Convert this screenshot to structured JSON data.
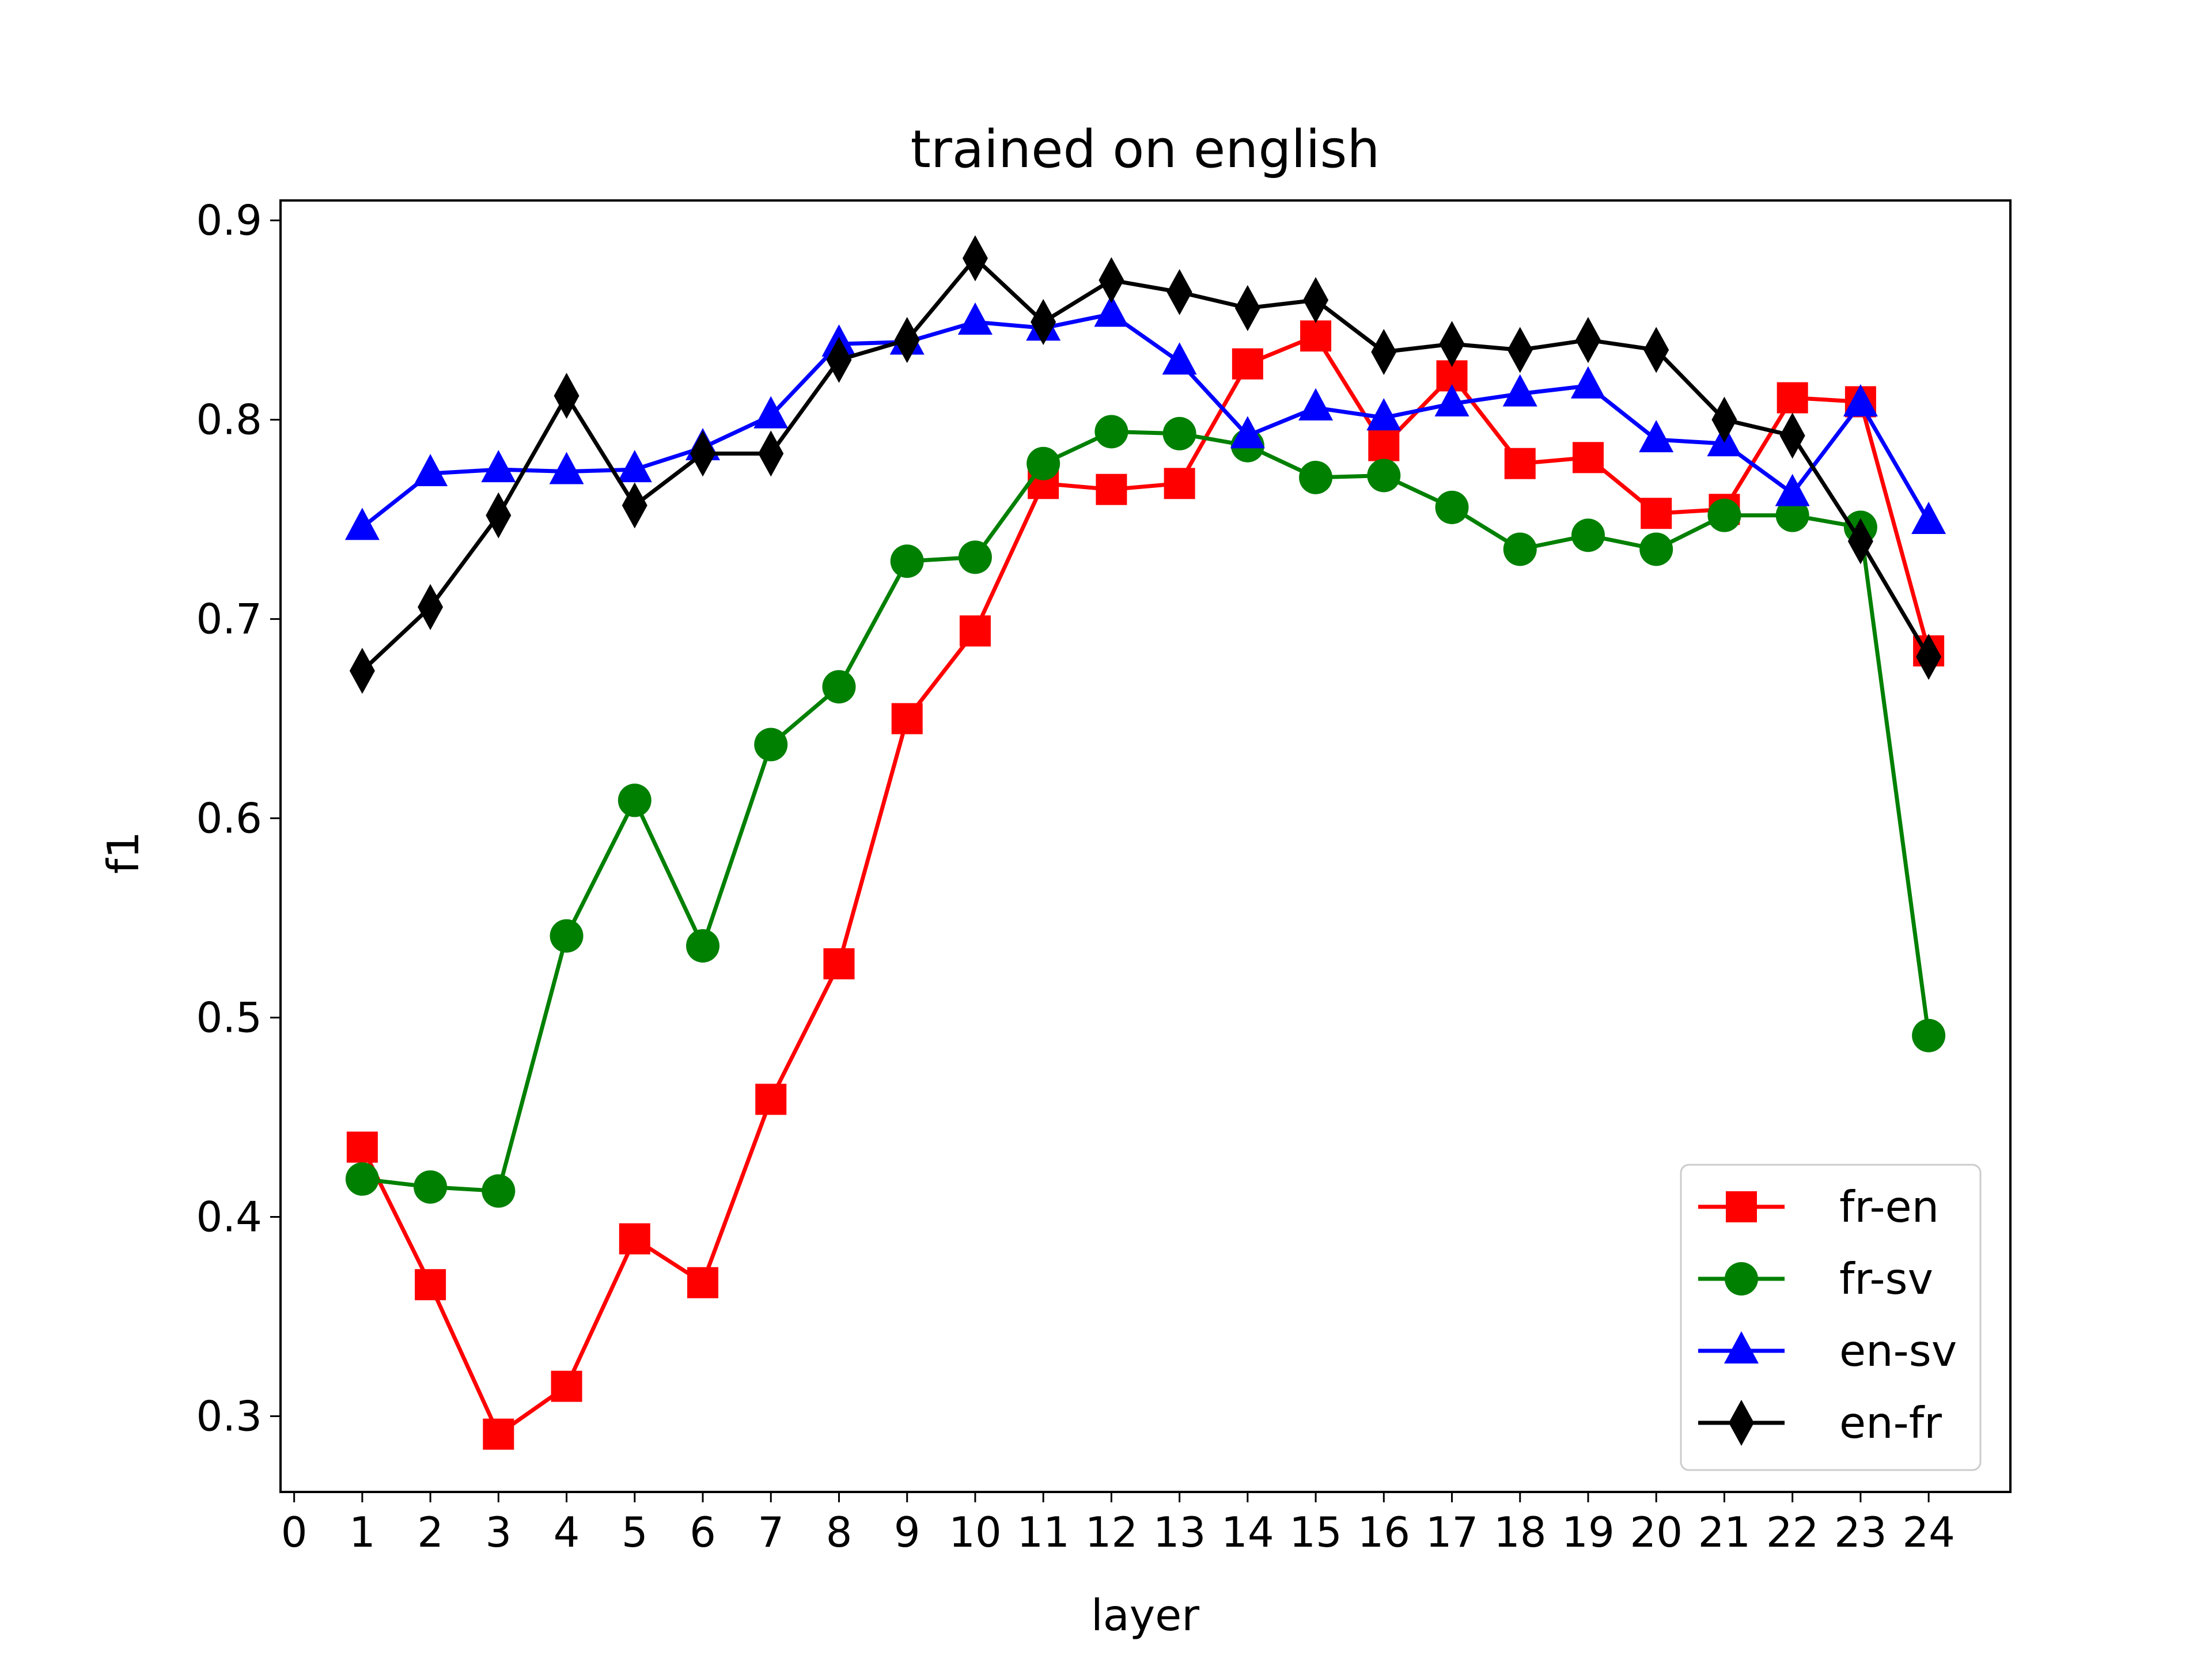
{
  "chart_data": {
    "type": "line",
    "title": "trained on english",
    "xlabel": "layer",
    "ylabel": "f1",
    "xlim": [
      -0.2,
      25.2
    ],
    "ylim": [
      0.262,
      0.91
    ],
    "xticks": [
      "0",
      "1",
      "2",
      "3",
      "4",
      "5",
      "6",
      "7",
      "8",
      "9",
      "10",
      "11",
      "12",
      "13",
      "14",
      "15",
      "16",
      "17",
      "18",
      "19",
      "20",
      "21",
      "22",
      "23",
      "24"
    ],
    "yticks": [
      "0.3",
      "0.4",
      "0.5",
      "0.6",
      "0.7",
      "0.8",
      "0.9"
    ],
    "grid": false,
    "legend_position": "lower-right",
    "x": [
      1,
      2,
      3,
      4,
      5,
      6,
      7,
      8,
      9,
      10,
      11,
      12,
      13,
      14,
      15,
      16,
      17,
      18,
      19,
      20,
      21,
      22,
      23,
      24
    ],
    "series": [
      {
        "name": "fr-en",
        "color": "#ff0000",
        "marker": "square",
        "values": [
          0.435,
          0.366,
          0.291,
          0.315,
          0.389,
          0.367,
          0.459,
          0.527,
          0.65,
          0.694,
          0.768,
          0.765,
          0.768,
          0.828,
          0.842,
          0.787,
          0.822,
          0.778,
          0.781,
          0.753,
          0.755,
          0.811,
          0.809,
          0.684
        ]
      },
      {
        "name": "fr-sv",
        "color": "#008000",
        "marker": "circle",
        "values": [
          0.419,
          0.415,
          0.413,
          0.541,
          0.609,
          0.536,
          0.637,
          0.666,
          0.729,
          0.731,
          0.778,
          0.794,
          0.793,
          0.787,
          0.771,
          0.772,
          0.756,
          0.735,
          0.742,
          0.735,
          0.752,
          0.752,
          0.746,
          0.491
        ]
      },
      {
        "name": "en-sv",
        "color": "#0000ff",
        "marker": "triangle",
        "values": [
          0.746,
          0.773,
          0.775,
          0.774,
          0.775,
          0.786,
          0.802,
          0.838,
          0.839,
          0.849,
          0.846,
          0.853,
          0.829,
          0.792,
          0.806,
          0.801,
          0.808,
          0.813,
          0.817,
          0.79,
          0.788,
          0.763,
          0.808,
          0.749
        ]
      },
      {
        "name": "en-fr",
        "color": "#000000",
        "marker": "diamond",
        "values": [
          0.674,
          0.706,
          0.752,
          0.812,
          0.757,
          0.783,
          0.783,
          0.83,
          0.84,
          0.881,
          0.849,
          0.87,
          0.864,
          0.856,
          0.86,
          0.834,
          0.838,
          0.835,
          0.84,
          0.835,
          0.8,
          0.792,
          0.739,
          0.681
        ]
      }
    ]
  }
}
